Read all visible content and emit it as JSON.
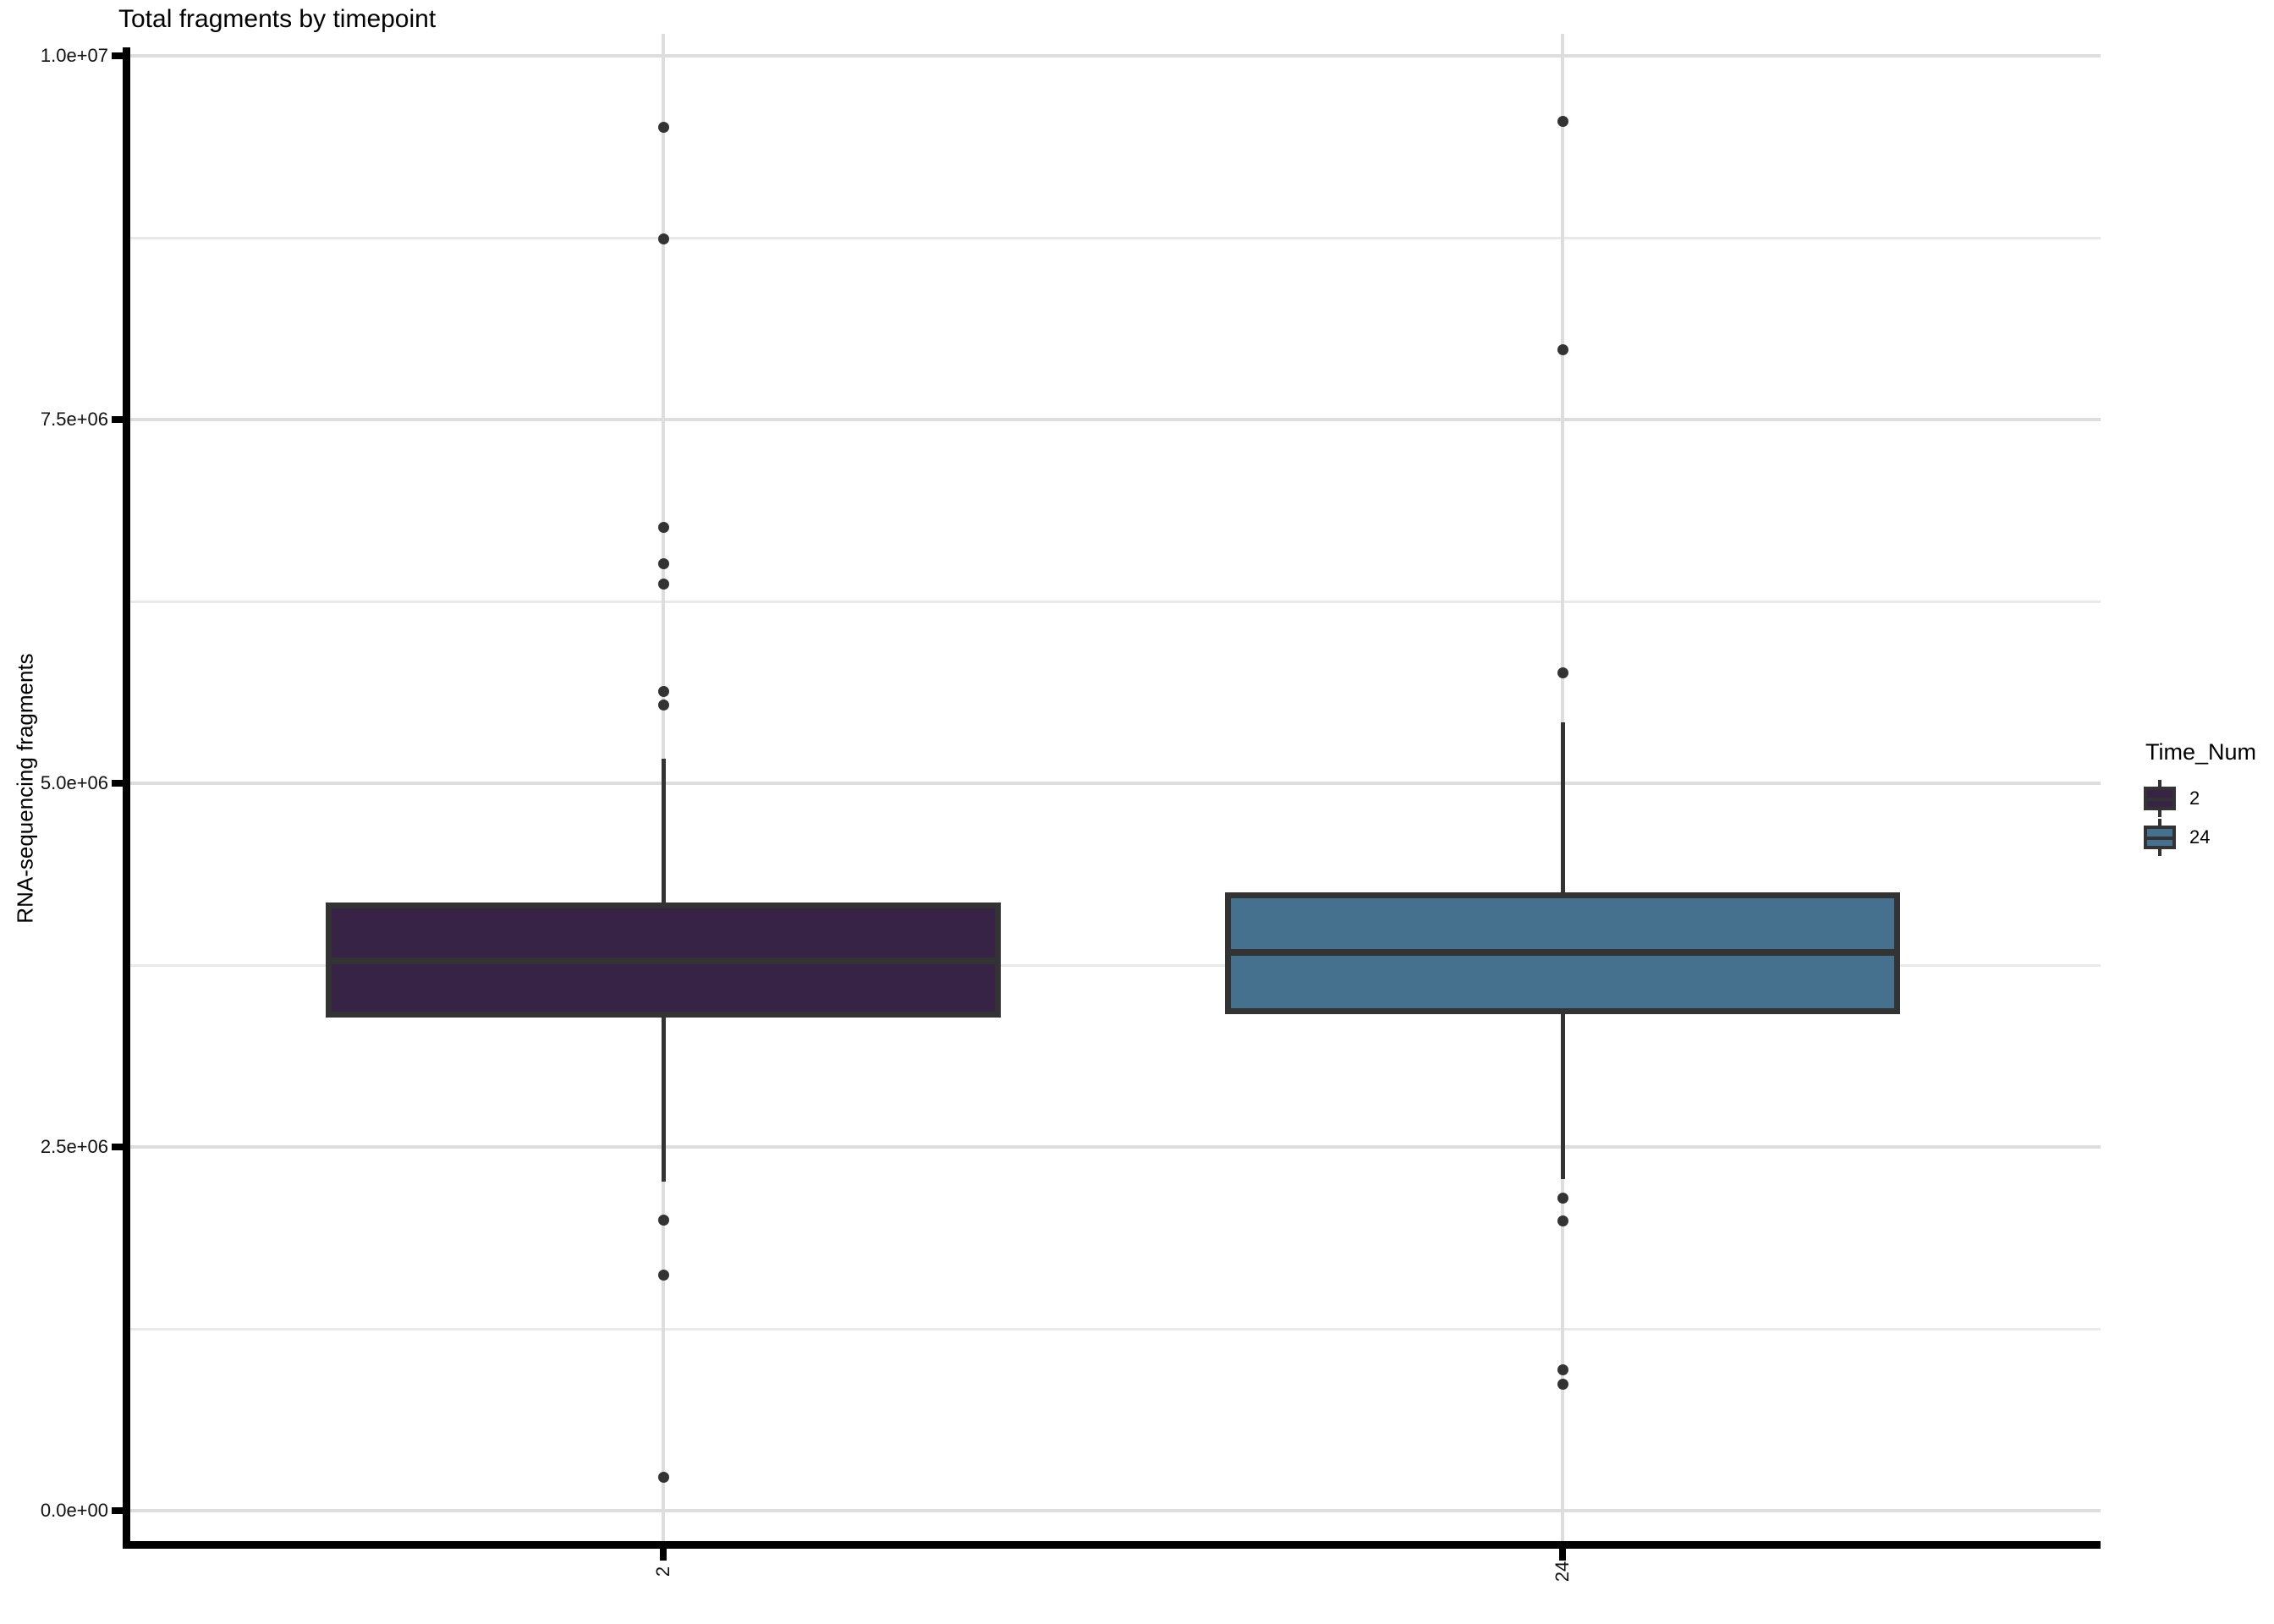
{
  "chart_data": {
    "type": "boxplot",
    "title": "Total fragments by timepoint",
    "xlabel": "",
    "ylabel": "RNA-sequencing fragments",
    "x_categories": [
      "2",
      "24"
    ],
    "legend": {
      "title": "Time_Num",
      "position": "right",
      "entries": [
        {
          "label": "2",
          "color": "#362346"
        },
        {
          "label": "24",
          "color": "#46718E"
        }
      ]
    },
    "y_axis": {
      "min": 0,
      "max": 10000000,
      "ticks": [
        {
          "v": 0,
          "label": "0.0e+00"
        },
        {
          "v": 2500000,
          "label": "2.5e+06"
        },
        {
          "v": 5000000,
          "label": "5.0e+06"
        },
        {
          "v": 7500000,
          "label": "7.5e+06"
        },
        {
          "v": 10000000,
          "label": "1.0e+07"
        }
      ],
      "minor_ticks": [
        1250000,
        3750000,
        6250000,
        8750000
      ]
    },
    "grid": {
      "major": true,
      "minor": true,
      "vertical_at_categories": true
    },
    "series": [
      {
        "category": "2",
        "color": "#362346",
        "stats": {
          "whisker_low": 2260000,
          "q1": 3390000,
          "median": 3780000,
          "q3": 4180000,
          "whisker_high": 5170000
        },
        "outliers": [
          9510000,
          8740000,
          6760000,
          6510000,
          6370000,
          5630000,
          5540000,
          2000000,
          1620000,
          230000
        ]
      },
      {
        "category": "24",
        "color": "#46718E",
        "stats": {
          "whisker_low": 2280000,
          "q1": 3410000,
          "median": 3840000,
          "q3": 4250000,
          "whisker_high": 5420000
        },
        "outliers": [
          9550000,
          7980000,
          5760000,
          2150000,
          1990000,
          970000,
          870000
        ]
      }
    ],
    "style": {
      "box_border": "#333333",
      "outlier_color": "#333333",
      "grid_major": "#dddddd",
      "grid_minor": "#e9e9e9",
      "axis_color": "#000000"
    }
  }
}
